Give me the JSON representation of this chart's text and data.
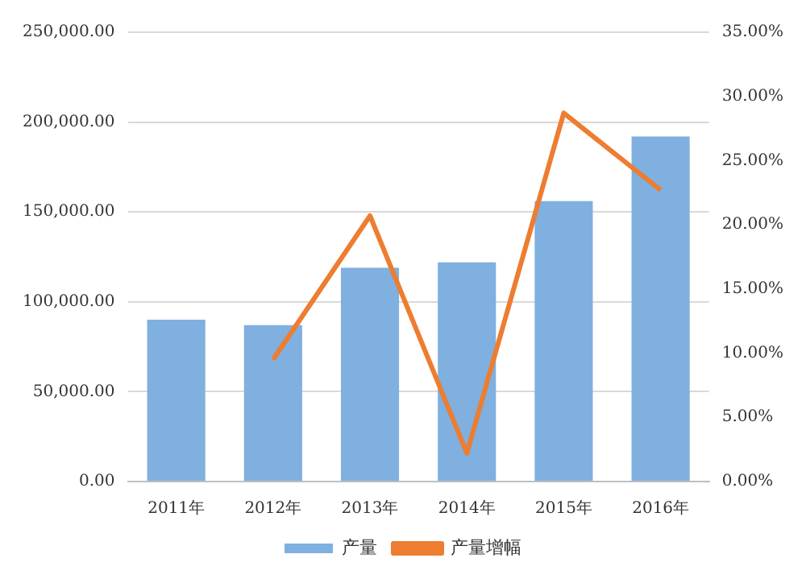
{
  "chart_data": {
    "type": "bar",
    "categories": [
      "2011年",
      "2012年",
      "2013年",
      "2014年",
      "2015年",
      "2016年"
    ],
    "series": [
      {
        "name": "产量",
        "color": "#7fb0e0",
        "values": [
          90000,
          87000,
          119000,
          122000,
          156000,
          192000
        ]
      },
      {
        "name": "产量增幅",
        "type": "line",
        "axis": "y2",
        "color": "#ed7d31",
        "values": [
          null,
          9.5,
          20.7,
          2.2,
          28.7,
          22.7
        ]
      }
    ],
    "ylim": [
      0,
      250000
    ],
    "yticks": [
      {
        "value": 0,
        "label": "0.00"
      },
      {
        "value": 50000,
        "label": "50,000.00"
      },
      {
        "value": 100000,
        "label": "100,000.00"
      },
      {
        "value": 150000,
        "label": "150,000.00"
      },
      {
        "value": 200000,
        "label": "200,000.00"
      },
      {
        "value": 250000,
        "label": "250,000.00"
      }
    ],
    "y2lim": [
      0,
      35
    ],
    "y2ticks": [
      {
        "value": 0,
        "label": "0.00%"
      },
      {
        "value": 5,
        "label": "5.00%"
      },
      {
        "value": 10,
        "label": "10.00%"
      },
      {
        "value": 15,
        "label": "15.00%"
      },
      {
        "value": 20,
        "label": "20.00%"
      },
      {
        "value": 25,
        "label": "25.00%"
      },
      {
        "value": 30,
        "label": "30.00%"
      },
      {
        "value": 35,
        "label": "35.00%"
      }
    ],
    "grid": "y",
    "legend": "bottom",
    "marker": "none"
  }
}
